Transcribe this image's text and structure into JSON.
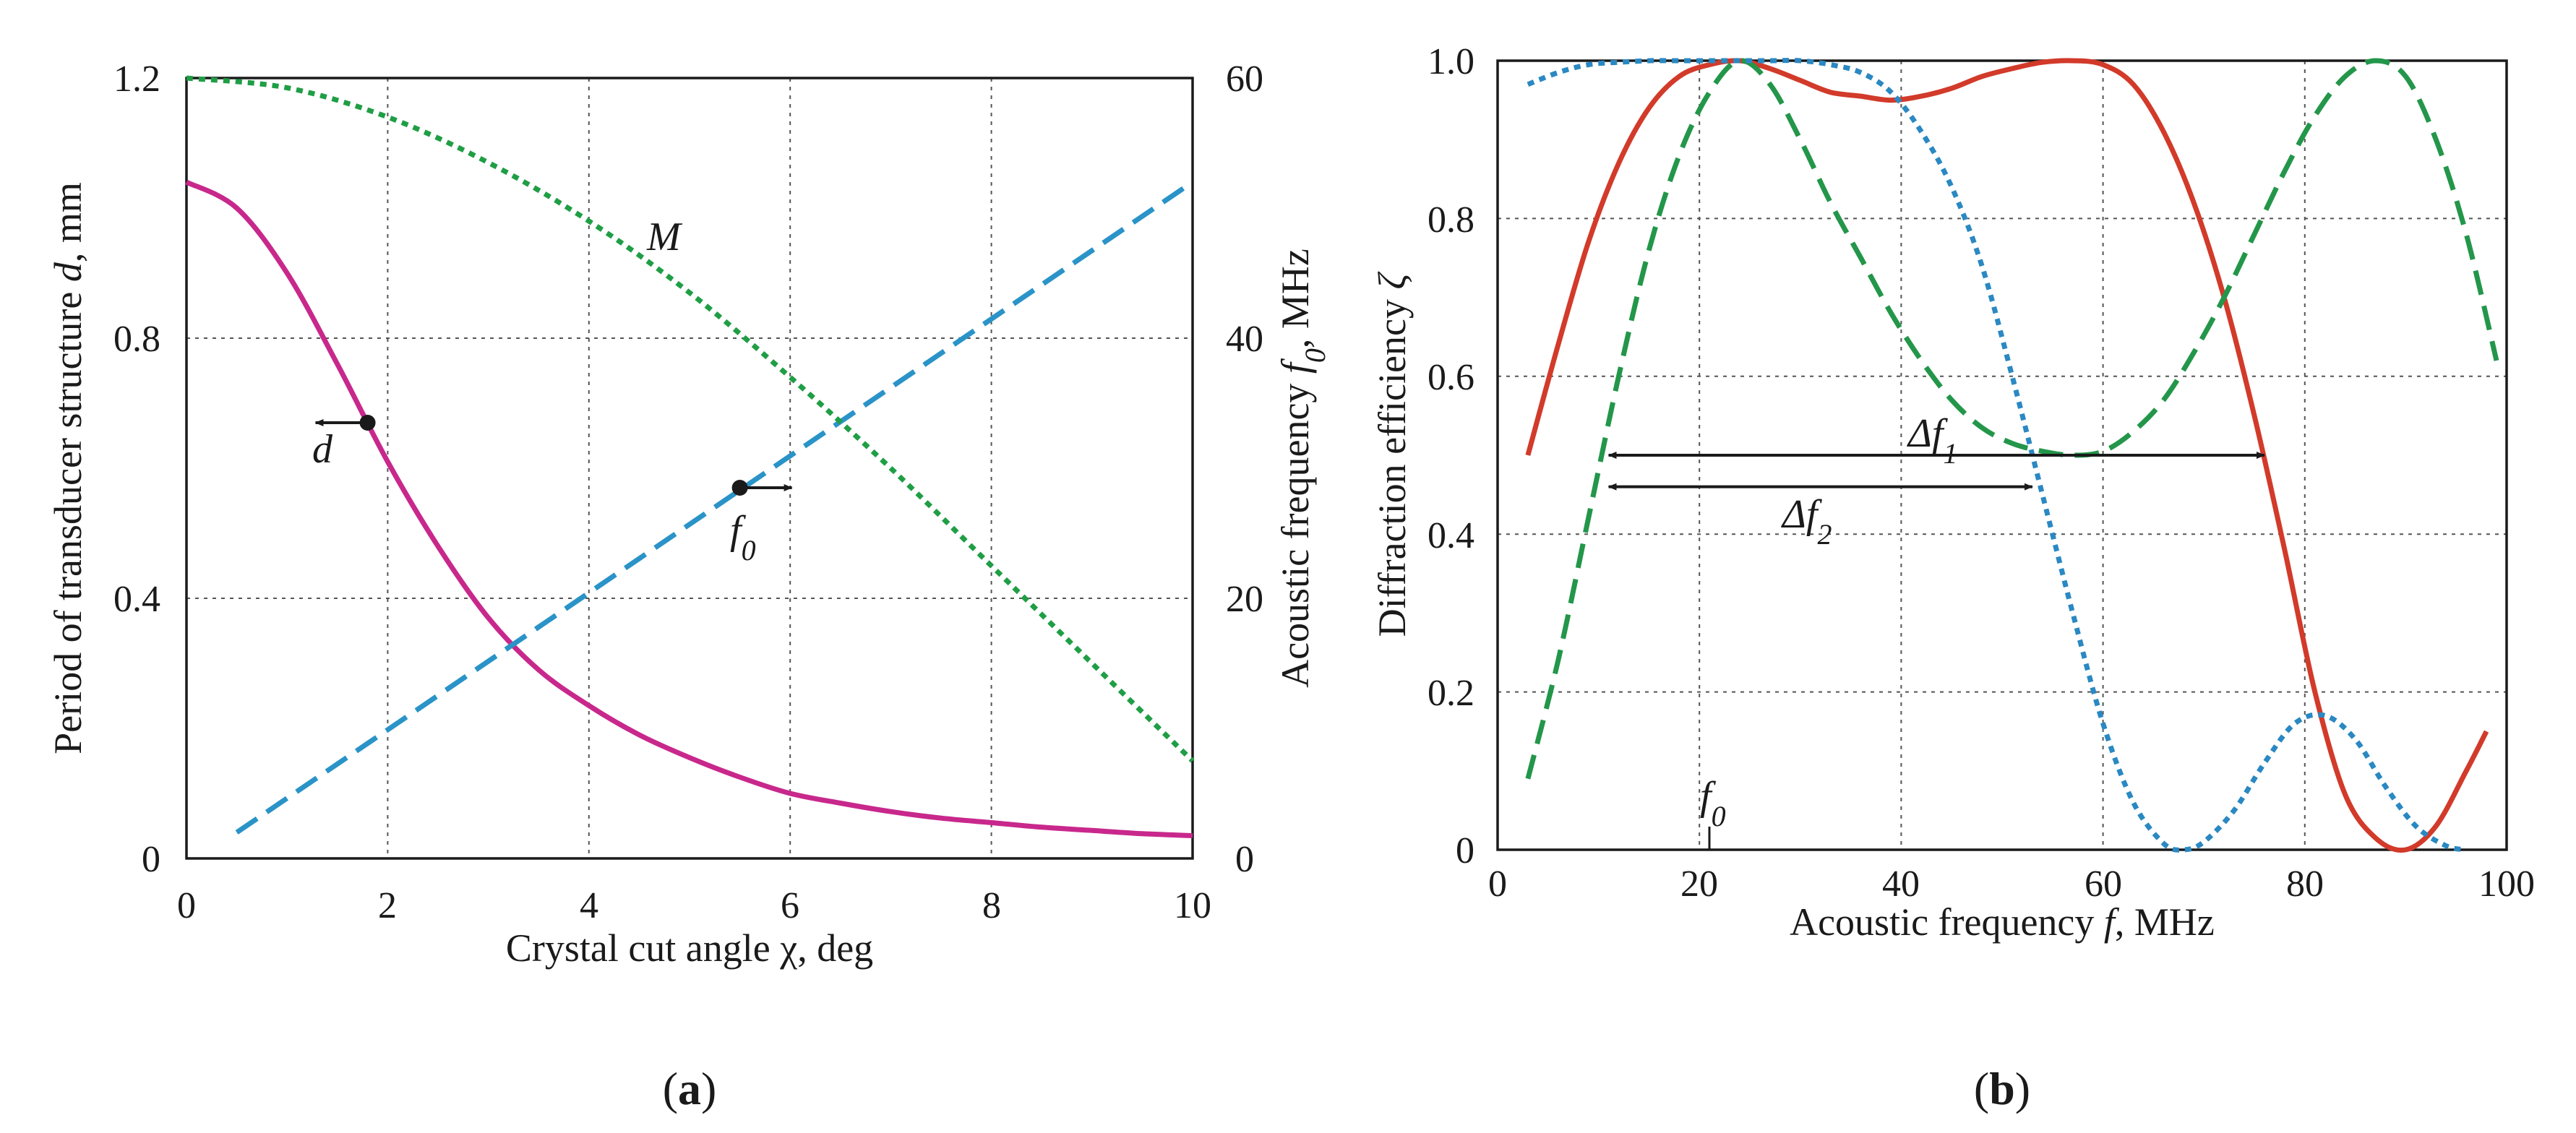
{
  "colors": {
    "magenta": "#c8288c",
    "cyan": "#2a93c8",
    "green": "#1f9e45",
    "red": "#d23a2a",
    "blue_dot": "#2a88c2",
    "green_dash": "#23964a",
    "text": "#1a1a1a"
  },
  "chart_data": [
    {
      "type": "line",
      "panel": "(a)",
      "xlabel": "Crystal cut angle",
      "xsymbol": "χ",
      "xunit": ", deg",
      "ylabel_left": "Period of transducer structure",
      "ylabel_left_symbol": "d",
      "ylabel_left_unit": ", mm",
      "ylabel_right": "Acoustic frequency",
      "ylabel_right_symbol": "f",
      "ylabel_right_sub": "0",
      "ylabel_right_unit": ", MHz",
      "xlim": [
        0,
        10
      ],
      "ylim_left": [
        0,
        1.2
      ],
      "ylim_right": [
        0,
        60
      ],
      "x_ticks": [
        "0",
        "2",
        "4",
        "6",
        "8",
        "10"
      ],
      "y_left_ticks": [
        "0",
        "0.4",
        "0.8",
        "1.2"
      ],
      "y_right_ticks": [
        "0",
        "20",
        "40",
        "60"
      ],
      "series": [
        {
          "name": "d",
          "axis": "left",
          "style": "solid",
          "color": "#c8288c",
          "x": [
            0,
            0.5,
            1,
            1.5,
            2,
            2.5,
            3,
            3.5,
            4,
            4.5,
            5,
            5.5,
            6,
            6.5,
            7,
            7.5,
            8,
            8.5,
            9,
            9.5,
            10
          ],
          "y": [
            1.04,
            1.0,
            0.9,
            0.76,
            0.61,
            0.48,
            0.37,
            0.29,
            0.235,
            0.19,
            0.155,
            0.125,
            0.1,
            0.085,
            0.072,
            0.062,
            0.055,
            0.048,
            0.043,
            0.038,
            0.035
          ]
        },
        {
          "name": "f0",
          "axis": "right",
          "style": "dashed",
          "color": "#2a93c8",
          "x": [
            0.5,
            10
          ],
          "y": [
            2,
            52
          ]
        },
        {
          "name": "M",
          "axis": "left",
          "style": "dotted",
          "color": "#1f9e45",
          "x": [
            0,
            1,
            2,
            3,
            4,
            5,
            6,
            7,
            8,
            9,
            10
          ],
          "y": [
            1.2,
            1.185,
            1.14,
            1.07,
            0.98,
            0.87,
            0.74,
            0.6,
            0.45,
            0.3,
            0.15
          ]
        }
      ],
      "annotations": {
        "d_label": "d",
        "f0_label": "f",
        "f0_sub": "0",
        "M_label": "M"
      },
      "markers": [
        {
          "series": "d",
          "x": 1.8,
          "y": 0.67,
          "arrow": "left"
        },
        {
          "series": "f0",
          "x": 5.5,
          "y": 0.57,
          "arrow": "right"
        }
      ]
    },
    {
      "type": "line",
      "panel": "(b)",
      "xlabel": "Acoustic frequency",
      "xsymbol": "f",
      "xunit": ", MHz",
      "ylabel": "Diffraction efficiency",
      "ysymbol": "ζ",
      "xlim": [
        0,
        100
      ],
      "ylim": [
        0,
        1.0
      ],
      "x_ticks": [
        "0",
        "20",
        "40",
        "60",
        "80",
        "100"
      ],
      "y_ticks": [
        "0",
        "0.2",
        "0.4",
        "0.6",
        "0.8",
        "1.0"
      ],
      "series": [
        {
          "name": "red",
          "style": "solid",
          "color": "#d23a2a",
          "x": [
            3,
            6,
            9,
            12,
            15,
            18,
            21,
            24,
            27,
            30,
            33,
            36,
            39,
            42,
            45,
            48,
            51,
            54,
            57,
            60,
            63,
            66,
            69,
            72,
            75,
            78,
            81,
            84,
            87,
            90,
            93,
            96,
            98
          ],
          "y": [
            0.5,
            0.64,
            0.77,
            0.87,
            0.94,
            0.98,
            0.995,
            1.0,
            0.99,
            0.975,
            0.96,
            0.955,
            0.95,
            0.955,
            0.965,
            0.98,
            0.99,
            0.998,
            1.0,
            0.995,
            0.97,
            0.91,
            0.82,
            0.7,
            0.55,
            0.38,
            0.2,
            0.07,
            0.015,
            0.0,
            0.03,
            0.1,
            0.15
          ]
        },
        {
          "name": "green",
          "style": "dashed",
          "color": "#23964a",
          "x": [
            3,
            6,
            9,
            12,
            15,
            18,
            21,
            24,
            27,
            30,
            33,
            36,
            39,
            42,
            45,
            48,
            51,
            54,
            57,
            60,
            63,
            66,
            69,
            72,
            75,
            78,
            81,
            84,
            87,
            90,
            93,
            96,
            99
          ],
          "y": [
            0.09,
            0.24,
            0.42,
            0.6,
            0.76,
            0.88,
            0.96,
            1.0,
            0.97,
            0.9,
            0.82,
            0.75,
            0.68,
            0.62,
            0.57,
            0.535,
            0.515,
            0.505,
            0.5,
            0.505,
            0.53,
            0.57,
            0.63,
            0.7,
            0.78,
            0.86,
            0.93,
            0.98,
            1.0,
            0.98,
            0.9,
            0.78,
            0.62
          ]
        },
        {
          "name": "blue",
          "style": "dotted",
          "color": "#2a88c2",
          "x": [
            3,
            6,
            9,
            12,
            15,
            18,
            21,
            24,
            27,
            30,
            33,
            36,
            39,
            42,
            45,
            48,
            51,
            54,
            57,
            60,
            63,
            66,
            68,
            70,
            73,
            76,
            79,
            82,
            85,
            88,
            91,
            94,
            96
          ],
          "y": [
            0.97,
            0.985,
            0.995,
            0.998,
            1.0,
            1.0,
            1.0,
            1.0,
            1.0,
            1.0,
            0.995,
            0.985,
            0.96,
            0.91,
            0.84,
            0.74,
            0.6,
            0.45,
            0.3,
            0.16,
            0.06,
            0.008,
            0.0,
            0.01,
            0.05,
            0.11,
            0.16,
            0.17,
            0.14,
            0.08,
            0.03,
            0.005,
            0.0
          ]
        }
      ],
      "annotations": {
        "delta_f1": "Δf",
        "delta_f1_sub": "1",
        "delta_f2": "Δf",
        "delta_f2_sub": "2",
        "f0_label": "f",
        "f0_sub": "0",
        "f0_marker_x": 21
      },
      "ranges": [
        {
          "name": "delta_f1",
          "x_start": 11,
          "x_end": 76,
          "y": 0.5
        },
        {
          "name": "delta_f2",
          "x_start": 11,
          "x_end": 53,
          "y": 0.46
        }
      ]
    }
  ],
  "captions": {
    "a_open": "(",
    "a_letter": "a",
    "a_close": ")",
    "b_open": "(",
    "b_letter": "b",
    "b_close": ")"
  }
}
